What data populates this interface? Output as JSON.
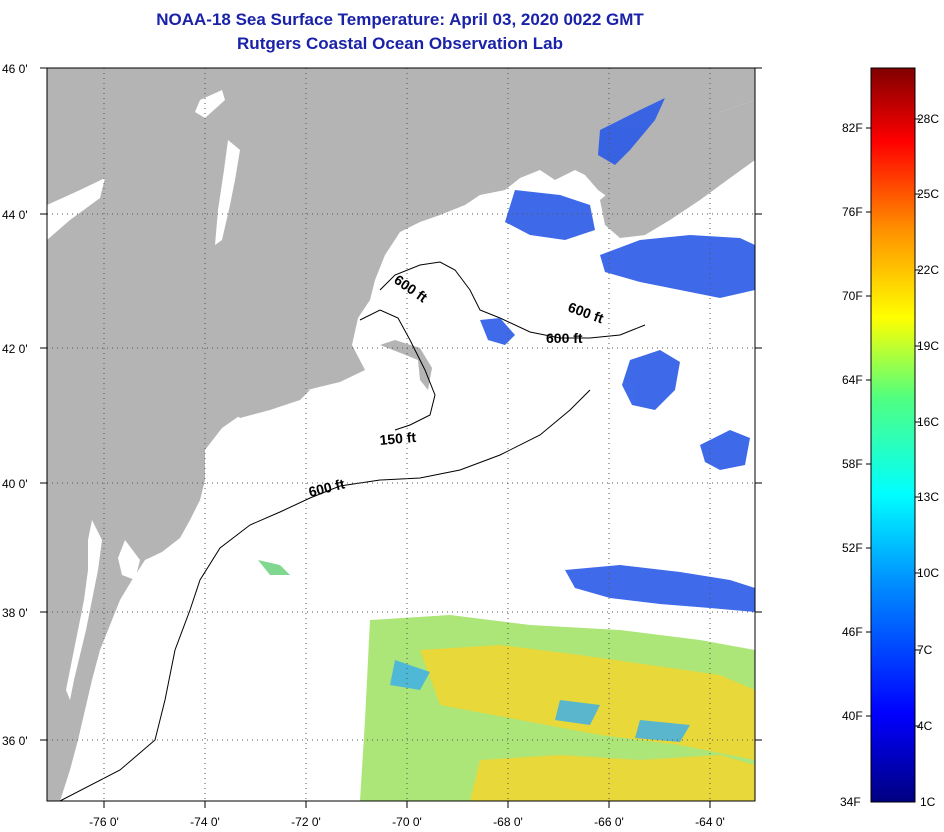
{
  "title": {
    "line1": "NOAA-18 Sea Surface Temperature:  April 03, 2020 0022 GMT",
    "line2": "Rutgers Coastal Ocean Observation Lab"
  },
  "map": {
    "lon_range": [
      -77,
      -63
    ],
    "lat_range": [
      35,
      46
    ],
    "lon_ticks": [
      "-76 0'",
      "-74 0'",
      "-72 0'",
      "-70 0'",
      "-68 0'",
      "-66 0'",
      "-64 0'"
    ],
    "lat_ticks": [
      "46 0'",
      "44 0'",
      "42 0'",
      "40 0'",
      "38 0'",
      "36 0'"
    ],
    "contour_labels": {
      "c600a": "600 ft",
      "c600b": "600 ft",
      "c600c": "600 ft",
      "c600d": "600 ft",
      "c150": "150 ft"
    },
    "colors": {
      "land": "#b4b4b4",
      "ocean": "#ffffff",
      "cold_sst": "#2a5ae8",
      "warm_sst": "#e8d83a",
      "grid": "#555555"
    }
  },
  "colorbar": {
    "fahrenheit": [
      "82F",
      "76F",
      "70F",
      "64F",
      "58F",
      "52F",
      "46F",
      "40F",
      "34F"
    ],
    "celsius": [
      "28C",
      "25C",
      "22C",
      "19C",
      "16C",
      "13C",
      "10C",
      "7C",
      "4C",
      "1C"
    ]
  }
}
